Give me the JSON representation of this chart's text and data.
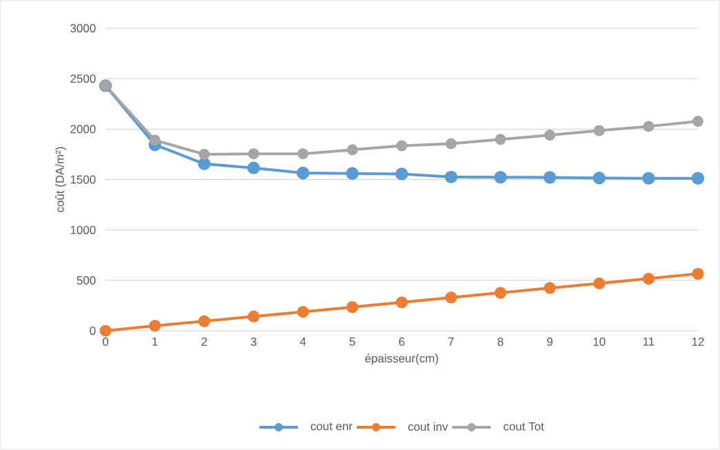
{
  "chart_data": {
    "type": "line",
    "xlabel": "épaisseur(cm)",
    "ylabel": "coût (DA/m²)",
    "categories": [
      "0",
      "1",
      "2",
      "3",
      "4",
      "5",
      "6",
      "7",
      "8",
      "9",
      "10",
      "11",
      "12"
    ],
    "series": [
      {
        "name": "cout enr",
        "color": "#5b9bd5",
        "values": [
          2430,
          1845,
          1655,
          1615,
          1565,
          1560,
          1555,
          1525,
          1523,
          1520,
          1515,
          1512,
          1512
        ]
      },
      {
        "name": "cout inv",
        "color": "#ed7d31",
        "values": [
          0,
          50,
          95,
          142,
          188,
          235,
          282,
          330,
          377,
          424,
          470,
          517,
          565
        ]
      },
      {
        "name": "cout Tot",
        "color": "#a5a5a5",
        "values": [
          2430,
          1890,
          1750,
          1755,
          1755,
          1795,
          1835,
          1855,
          1898,
          1940,
          1985,
          2027,
          2077
        ]
      }
    ],
    "ylim": [
      0,
      3000
    ],
    "yticks": [
      0,
      500,
      1000,
      1500,
      2000,
      2500,
      3000
    ],
    "grid": "y",
    "legend": "bottom",
    "marker": "circle",
    "line_style": "solid"
  }
}
